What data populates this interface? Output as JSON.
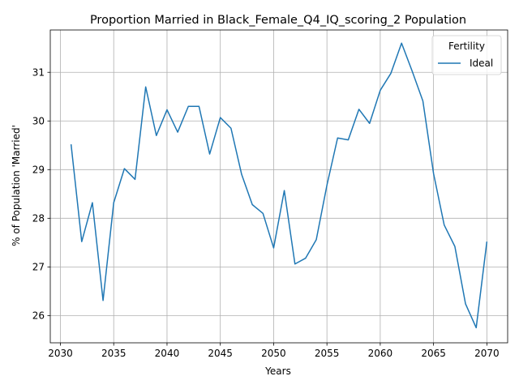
{
  "chart_data": {
    "type": "line",
    "title": "Proportion Married in Black_Female_Q4_IQ_scoring_2 Population",
    "xlabel": "Years",
    "ylabel": "% of Population 'Married'",
    "xlim": [
      2029.05,
      2071.95
    ],
    "ylim": [
      25.44,
      31.87
    ],
    "xticks": [
      2030,
      2035,
      2040,
      2045,
      2050,
      2055,
      2060,
      2065,
      2070
    ],
    "yticks": [
      26,
      27,
      28,
      29,
      30,
      31
    ],
    "grid": true,
    "legend": {
      "title": "Fertility",
      "placement": "top-right"
    },
    "series": [
      {
        "name": "Ideal",
        "color": "#1f77b4",
        "x": [
          2031,
          2032,
          2033,
          2034,
          2035,
          2036,
          2037,
          2038,
          2039,
          2040,
          2041,
          2042,
          2043,
          2044,
          2045,
          2046,
          2047,
          2048,
          2049,
          2050,
          2051,
          2052,
          2053,
          2054,
          2055,
          2056,
          2057,
          2058,
          2059,
          2060,
          2061,
          2062,
          2063,
          2064,
          2065,
          2066,
          2067,
          2068,
          2069,
          2070
        ],
        "y": [
          29.52,
          27.52,
          28.32,
          26.31,
          28.32,
          29.02,
          28.8,
          30.7,
          29.7,
          30.23,
          29.77,
          30.3,
          30.3,
          29.32,
          30.07,
          29.85,
          28.9,
          28.28,
          28.1,
          27.39,
          28.57,
          27.06,
          27.18,
          27.56,
          28.68,
          29.65,
          29.61,
          30.24,
          29.95,
          30.63,
          30.98,
          31.6,
          31.02,
          30.41,
          28.92,
          27.86,
          27.42,
          26.24,
          25.75,
          27.52
        ]
      }
    ]
  }
}
